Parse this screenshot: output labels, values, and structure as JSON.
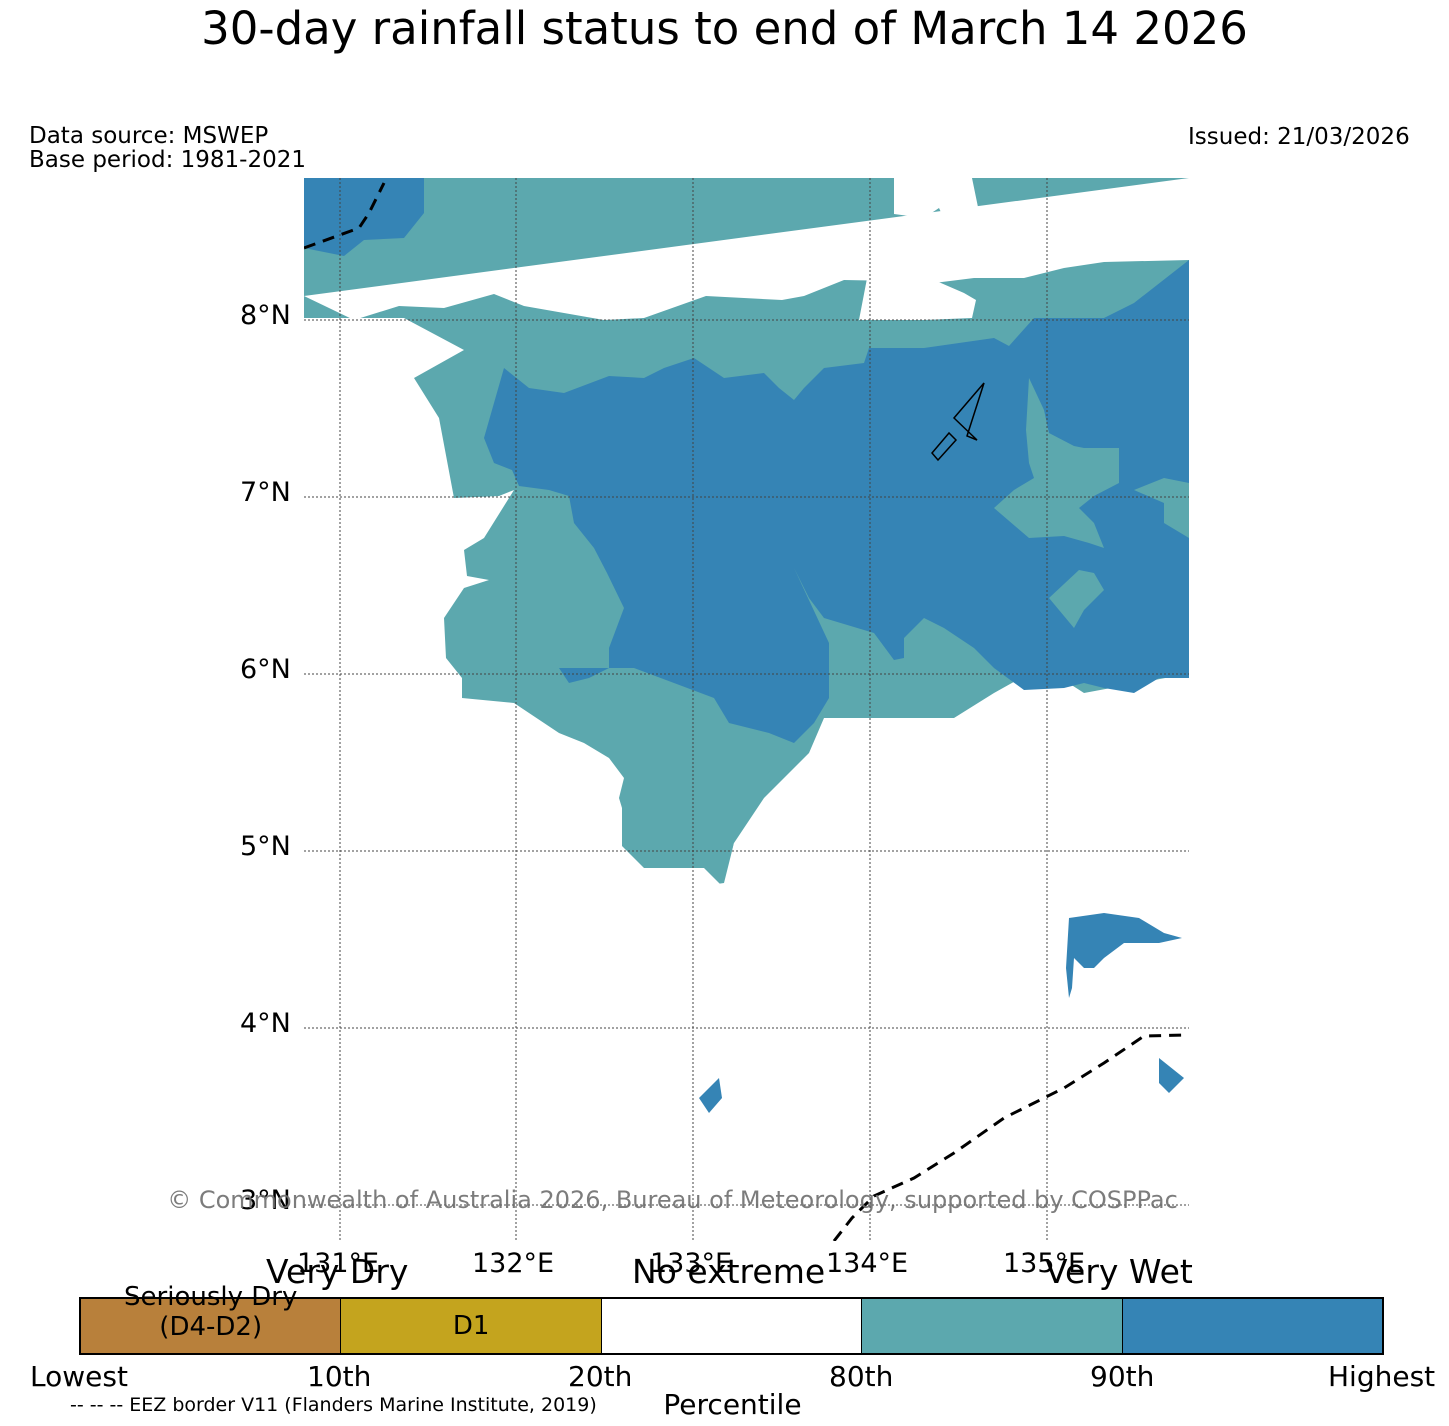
{
  "title": "30-day rainfall status to end of March 14 2026",
  "data_source": "Data source: MSWEP",
  "base_period": "Base period: 1981-2021",
  "issued": "Issued: 21/03/2026",
  "copyright": "© Commonwealth of Australia 2026, Bureau of Meteorology, supported by COSPPac",
  "eez_note": "-- -- -- EEZ border V11 (Flanders Marine Institute, 2019)",
  "map": {
    "lat_labels": [
      "8°N",
      "7°N",
      "6°N",
      "5°N",
      "4°N",
      "3°N"
    ],
    "lon_labels": [
      "131°E",
      "132°E",
      "133°E",
      "134°E",
      "135°E"
    ],
    "colors": {
      "very_wet": "#3584b5",
      "wet_80_90": "#5ca8ae",
      "no_extreme": "#ffffff",
      "d1": "#c4a41e",
      "seriously_dry": "#b8803b"
    }
  },
  "legend": {
    "categories": {
      "very_dry": "Very Dry",
      "no_extreme": "No extreme",
      "very_wet": "Very Wet"
    },
    "boxes": [
      {
        "label": "Seriously Dry\n(D4-D2)",
        "color": "#b8803b"
      },
      {
        "label": "D1",
        "color": "#c4a41e"
      },
      {
        "label": "",
        "color": "#ffffff"
      },
      {
        "label": "",
        "color": "#5ca8ae"
      },
      {
        "label": "",
        "color": "#3584b5"
      }
    ],
    "percentiles": [
      "Lowest",
      "10th",
      "20th",
      "80th",
      "90th",
      "Highest"
    ],
    "axis_label": "Percentile"
  }
}
